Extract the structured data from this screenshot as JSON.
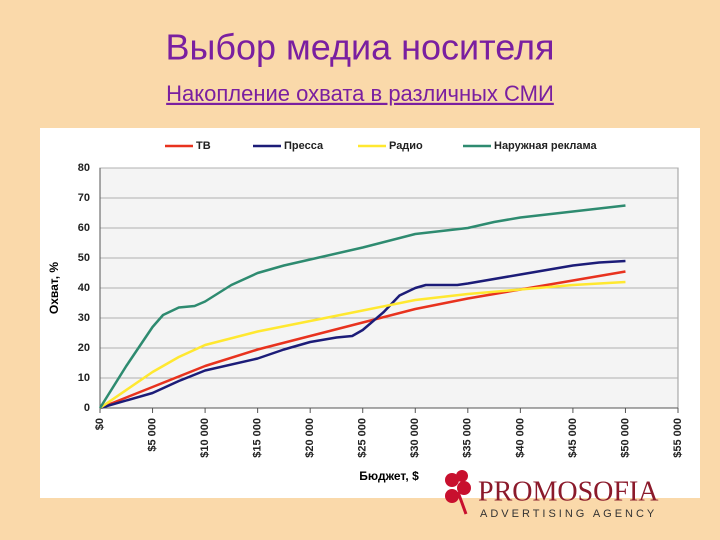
{
  "chart_data": {
    "type": "line",
    "title": "Выбор медиа носителя",
    "subtitle": "Накопление охвата в различных СМИ",
    "xlabel": "Бюджет, $",
    "ylabel": "Охват, %",
    "xlim": [
      0,
      55000
    ],
    "ylim": [
      0,
      80
    ],
    "yticks": [
      0,
      10,
      20,
      30,
      40,
      50,
      60,
      70,
      80
    ],
    "xticks": [
      {
        "value": 0,
        "label": "$0"
      },
      {
        "value": 5000,
        "label": "$5 000"
      },
      {
        "value": 10000,
        "label": "$10 000"
      },
      {
        "value": 15000,
        "label": "$15 000"
      },
      {
        "value": 20000,
        "label": "$20 000"
      },
      {
        "value": 25000,
        "label": "$25 000"
      },
      {
        "value": 30000,
        "label": "$30 000"
      },
      {
        "value": 35000,
        "label": "$35 000"
      },
      {
        "value": 40000,
        "label": "$40 000"
      },
      {
        "value": 45000,
        "label": "$45 000"
      },
      {
        "value": 50000,
        "label": "$50 000"
      },
      {
        "value": 55000,
        "label": "$55 000"
      }
    ],
    "grid": true,
    "legend": "top",
    "series": [
      {
        "name": "ТВ",
        "color": "#e8321e",
        "x": [
          0,
          5000,
          10000,
          15000,
          20000,
          25000,
          30000,
          35000,
          40000,
          45000,
          50000
        ],
        "values": [
          0,
          7,
          14,
          19.5,
          24,
          28.5,
          33,
          36.5,
          39.5,
          42.5,
          45.5
        ]
      },
      {
        "name": "Пресса",
        "color": "#1c1c78",
        "x": [
          0,
          5000,
          7500,
          10000,
          15000,
          17500,
          20000,
          22500,
          24000,
          25000,
          27000,
          28500,
          30000,
          31000,
          34000,
          35000,
          40000,
          45000,
          47500,
          50000
        ],
        "values": [
          0,
          5,
          9,
          12.5,
          16.5,
          19.5,
          22,
          23.5,
          24,
          26,
          32,
          37.5,
          40,
          41,
          41,
          41.5,
          44.5,
          47.5,
          48.5,
          49
        ]
      },
      {
        "name": "Радио",
        "color": "#ffe830",
        "x": [
          0,
          5000,
          7500,
          10000,
          15000,
          20000,
          25000,
          30000,
          35000,
          40000,
          45000,
          50000
        ],
        "values": [
          0,
          12,
          17,
          21,
          25.5,
          29,
          32.5,
          36,
          38,
          39.5,
          41,
          42
        ]
      },
      {
        "name": "Наружная реклама",
        "color": "#2e8b70",
        "x": [
          0,
          2500,
          5000,
          6000,
          7500,
          9000,
          10000,
          12500,
          15000,
          17500,
          20000,
          25000,
          30000,
          35000,
          37500,
          40000,
          45000,
          50000
        ],
        "values": [
          0,
          14,
          27,
          31,
          33.5,
          34,
          35.5,
          41,
          45,
          47.5,
          49.5,
          53.5,
          58,
          60,
          62,
          63.5,
          65.5,
          67.5
        ]
      }
    ]
  },
  "logo": {
    "name": "PROMOSOFIA",
    "tagline": "ADVERTISING AGENCY"
  }
}
